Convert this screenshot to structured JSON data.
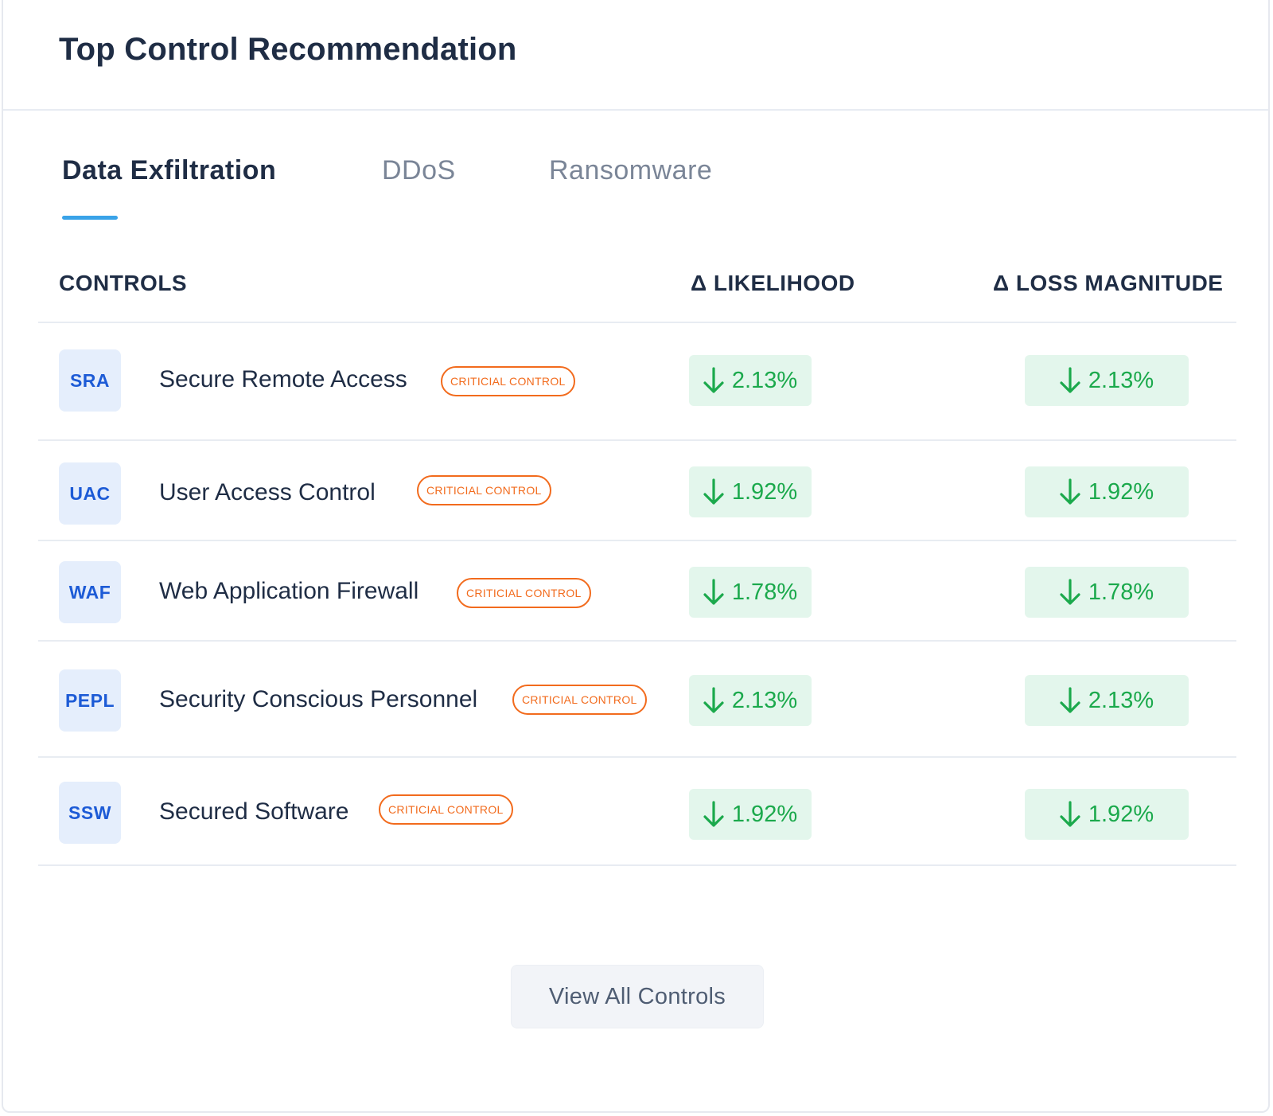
{
  "card": {
    "title": "Top Control Recommendation"
  },
  "tabs": [
    {
      "label": "Data Exfiltration",
      "active": true
    },
    {
      "label": "DDoS",
      "active": false
    },
    {
      "label": "Ransomware",
      "active": false
    }
  ],
  "table": {
    "headers": {
      "controls": "CONTROLS",
      "likelihood": "Δ LIKELIHOOD",
      "loss": "Δ LOSS MAGNITUDE"
    },
    "rows": [
      {
        "abbr": "SRA",
        "name": "Secure Remote Access",
        "badge": "CRITICIAL CONTROL",
        "likelihood": "2.13%",
        "loss": "2.13%"
      },
      {
        "abbr": "UAC",
        "name": "User Access Control",
        "badge": "CRITICIAL CONTROL",
        "likelihood": "1.92%",
        "loss": "1.92%"
      },
      {
        "abbr": "WAF",
        "name": "Web Application Firewall",
        "badge": "CRITICIAL CONTROL",
        "likelihood": "1.78%",
        "loss": "1.78%"
      },
      {
        "abbr": "PEPL",
        "name": "Security Conscious Personnel",
        "badge": "CRITICIAL CONTROL",
        "likelihood": "2.13%",
        "loss": "2.13%"
      },
      {
        "abbr": "SSW",
        "name": "Secured Software",
        "badge": "CRITICIAL CONTROL",
        "likelihood": "1.92%",
        "loss": "1.92%"
      }
    ]
  },
  "footer": {
    "view_all_label": "View All Controls"
  },
  "icons": {
    "delta_arrow": "arrow-down-icon"
  },
  "colors": {
    "accent": "#3aa3e8",
    "badge": "#f26b1d",
    "positive": "#1ba94c",
    "positive_bg": "#e3f6ec",
    "abbr_bg": "#e5eefc",
    "abbr_text": "#1d5bd6"
  }
}
